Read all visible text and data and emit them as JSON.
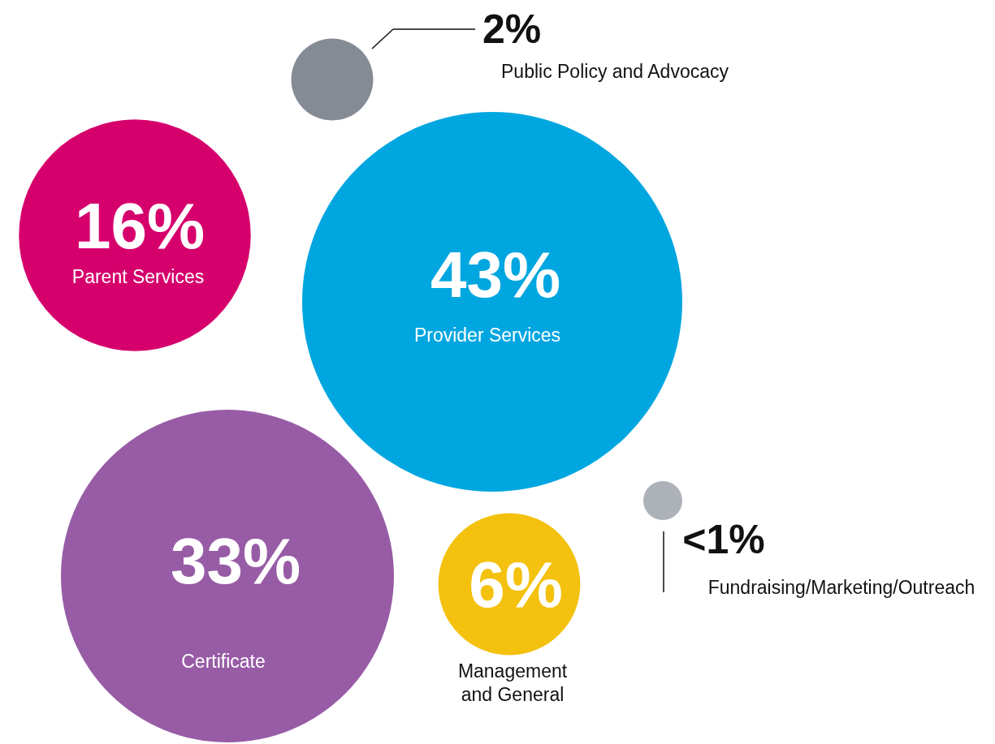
{
  "chart_data": {
    "type": "other",
    "categories": [
      "Provider Services",
      "Certificate",
      "Parent Services",
      "Management and General",
      "Public Policy and Advocacy",
      "Fundraising/Marketing/Outreach"
    ],
    "values": [
      43,
      33,
      16,
      6,
      2,
      null
    ],
    "value_labels": [
      "43%",
      "33%",
      "16%",
      "6%",
      "2%",
      "<1%"
    ],
    "colors": [
      "#00a6e0",
      "#975ca5",
      "#d6006d",
      "#f3c10e",
      "#848b95",
      "#adb1b8"
    ]
  }
}
